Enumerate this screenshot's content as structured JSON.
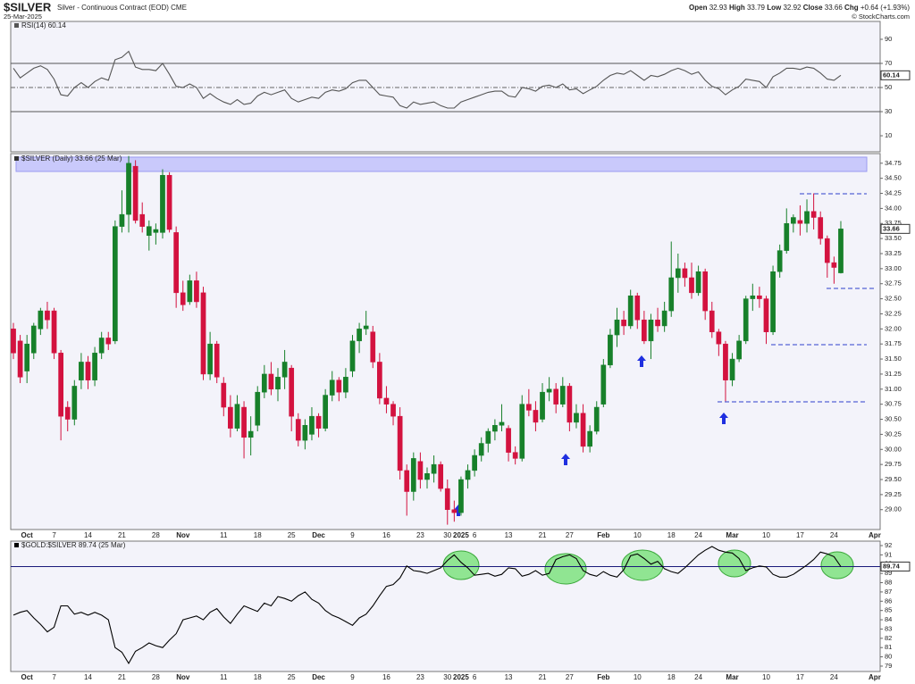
{
  "header": {
    "name": "Silver - Continuous Contract (EOD) CME",
    "date": "25-Mar-2025",
    "open_label": "Open",
    "high_label": "High",
    "low_label": "Low",
    "close_label": "Close",
    "chg_label": "Chg",
    "change": "+0.64 (+1.93%)",
    "credit": "© StockCharts.com"
  },
  "chart_data": [
    {
      "type": "line",
      "indicator": "RSI(14)",
      "color": "#555555",
      "bands": [
        30,
        70
      ],
      "midline": 50,
      "ylim": [
        -3.3,
        104.8
      ],
      "yticks": [
        10,
        30,
        50,
        70,
        90
      ],
      "values": [
        66,
        58,
        62,
        66,
        68,
        65,
        57,
        44,
        43,
        50,
        54,
        50,
        55,
        58,
        56,
        73,
        75,
        80,
        67,
        65,
        65,
        64,
        70,
        61,
        51,
        50,
        53,
        50,
        41,
        45,
        41,
        38,
        36,
        40,
        36,
        37,
        43,
        46,
        44,
        46,
        48,
        41,
        38,
        40,
        42,
        41,
        46,
        48,
        47,
        49,
        54,
        56,
        56,
        50,
        44,
        43,
        42,
        35,
        33,
        38,
        36,
        37,
        38,
        35,
        33,
        33,
        38,
        40,
        42,
        44,
        46,
        47,
        47,
        43,
        42,
        50,
        49,
        47,
        51,
        52,
        50,
        53,
        48,
        49,
        45,
        48,
        51,
        56,
        60,
        62,
        61,
        64,
        60,
        56,
        60,
        59,
        61,
        64,
        66,
        64,
        61,
        63,
        56,
        51,
        49,
        44,
        48,
        51,
        57,
        56,
        55,
        50,
        59,
        62,
        66,
        66,
        65,
        67,
        66,
        62,
        57,
        56,
        60.14,
        null,
        null,
        null,
        null,
        null
      ]
    },
    {
      "type": "candlestick",
      "symbol": "$SILVER",
      "period": "(Daily)",
      "date_label": "(25 Mar)",
      "up_color": "#17802a",
      "down_color": "#d3123f",
      "ylim": [
        28.67,
        34.91
      ],
      "yticks": [
        {
          "value": 29,
          "label": "29.00"
        },
        {
          "value": 29.25,
          "label": "29.25"
        },
        {
          "value": 29.5,
          "label": "29.50"
        },
        {
          "value": 29.75,
          "label": "29.75"
        },
        {
          "value": 30,
          "label": "30.00"
        },
        {
          "value": 30.25,
          "label": "30.25"
        },
        {
          "value": 30.5,
          "label": "30.50"
        },
        {
          "value": 30.75,
          "label": "30.75"
        },
        {
          "value": 31,
          "label": "31.00"
        },
        {
          "value": 31.25,
          "label": "31.25"
        },
        {
          "value": 31.5,
          "label": "31.50"
        },
        {
          "value": 31.75,
          "label": "31.75"
        },
        {
          "value": 32,
          "label": "32.00"
        },
        {
          "value": 32.25,
          "label": "32.25"
        },
        {
          "value": 32.5,
          "label": "32.50"
        },
        {
          "value": 32.75,
          "label": "32.75"
        },
        {
          "value": 33,
          "label": "33.00"
        },
        {
          "value": 33.25,
          "label": "33.25"
        },
        {
          "value": 33.5,
          "label": "33.50"
        },
        {
          "value": 33.75,
          "label": "33.75"
        },
        {
          "value": 34,
          "label": "34.00"
        },
        {
          "value": 34.25,
          "label": "34.25"
        },
        {
          "value": 34.5,
          "label": "34.50"
        },
        {
          "value": 34.75,
          "label": "34.75"
        }
      ],
      "categories": [
        null,
        null,
        "Oct",
        null,
        null,
        null,
        "7",
        null,
        null,
        null,
        null,
        "14",
        null,
        null,
        null,
        null,
        "21",
        null,
        null,
        null,
        null,
        "28",
        null,
        null,
        null,
        "Nov",
        null,
        null,
        null,
        null,
        null,
        "11",
        null,
        null,
        null,
        null,
        "18",
        null,
        null,
        null,
        null,
        "25",
        null,
        null,
        null,
        "Dec",
        null,
        null,
        null,
        null,
        "9",
        null,
        null,
        null,
        null,
        "16",
        null,
        null,
        null,
        null,
        "23",
        null,
        null,
        null,
        "30",
        null,
        "2025",
        null,
        "6",
        null,
        null,
        null,
        null,
        "13",
        null,
        null,
        null,
        null,
        "21",
        null,
        null,
        null,
        "27",
        null,
        null,
        null,
        null,
        "Feb",
        null,
        null,
        null,
        null,
        "10",
        null,
        null,
        null,
        null,
        "18",
        null,
        null,
        null,
        "24",
        null,
        null,
        null,
        null,
        "Mar",
        null,
        null,
        null,
        null,
        "10",
        null,
        null,
        null,
        null,
        "17",
        null,
        null,
        null,
        null,
        "24",
        null,
        null,
        null,
        null,
        null,
        "Apr"
      ],
      "open": [
        32.0,
        31.8,
        31.3,
        31.6,
        32.0,
        32.3,
        32.3,
        31.6,
        30.7,
        30.5,
        31.15,
        31.45,
        31.15,
        31.6,
        31.85,
        31.8,
        33.7,
        33.9,
        34.7,
        33.9,
        33.55,
        33.6,
        33.6,
        34.55,
        33.6,
        32.6,
        32.45,
        32.8,
        32.6,
        31.25,
        31.75,
        31.1,
        30.7,
        30.35,
        30.7,
        30.2,
        30.4,
        30.95,
        31.25,
        31.0,
        31.2,
        31.35,
        30.5,
        30.15,
        30.25,
        30.55,
        30.35,
        30.9,
        31.15,
        30.95,
        31.3,
        31.8,
        32.0,
        31.95,
        31.45,
        30.85,
        30.75,
        30.55,
        29.65,
        29.3,
        29.8,
        29.5,
        29.6,
        29.75,
        29.35,
        29.0,
        28.95,
        29.5,
        29.65,
        29.9,
        30.1,
        30.3,
        30.4,
        30.35,
        29.95,
        29.85,
        30.75,
        30.65,
        30.5,
        30.95,
        31.0,
        30.75,
        31.05,
        30.45,
        30.6,
        30.05,
        30.3,
        30.75,
        31.4,
        31.9,
        32.15,
        32.05,
        32.55,
        32.15,
        31.8,
        32.15,
        32.05,
        32.3,
        32.85,
        33.0,
        32.85,
        32.6,
        32.95,
        32.3,
        31.95,
        31.75,
        31.15,
        31.5,
        31.8,
        32.5,
        32.55,
        32.5,
        31.95,
        32.95,
        33.3,
        33.75,
        33.8,
        33.75,
        33.95,
        33.85,
        33.5,
        33.1,
        32.93,
        null,
        null,
        null,
        null,
        null
      ],
      "high": [
        32.1,
        31.9,
        31.9,
        32.1,
        32.35,
        32.45,
        32.35,
        31.65,
        30.8,
        31.15,
        31.6,
        31.55,
        31.7,
        31.95,
        31.95,
        33.8,
        34.3,
        34.87,
        34.8,
        34.1,
        33.8,
        33.75,
        34.65,
        34.6,
        33.7,
        32.8,
        32.9,
        32.95,
        32.7,
        31.95,
        31.8,
        31.2,
        30.9,
        30.9,
        30.8,
        30.55,
        31.05,
        31.4,
        31.45,
        31.35,
        31.65,
        31.4,
        30.6,
        30.5,
        30.7,
        30.6,
        31.0,
        31.3,
        31.2,
        31.35,
        31.9,
        32.1,
        32.3,
        32.05,
        31.6,
        31.05,
        30.8,
        30.7,
        29.75,
        29.95,
        29.95,
        29.7,
        29.9,
        29.8,
        29.5,
        29.15,
        29.55,
        29.75,
        30.0,
        30.2,
        30.35,
        30.5,
        30.75,
        30.4,
        30.05,
        30.9,
        31.0,
        30.8,
        31.1,
        31.2,
        31.1,
        31.2,
        31.1,
        30.75,
        30.75,
        30.4,
        30.8,
        31.5,
        32.0,
        32.35,
        32.3,
        32.65,
        32.6,
        32.3,
        32.25,
        32.35,
        32.45,
        33.45,
        33.25,
        33.1,
        33.1,
        33.05,
        33.0,
        32.45,
        32.0,
        31.8,
        31.6,
        31.9,
        32.55,
        32.75,
        32.7,
        32.55,
        33.05,
        33.4,
        34.0,
        33.9,
        34.05,
        34.15,
        34.25,
        33.95,
        33.55,
        33.2,
        33.79,
        null,
        null,
        null,
        null,
        null
      ],
      "low": [
        31.5,
        31.1,
        31.1,
        31.5,
        31.9,
        32.0,
        31.5,
        30.15,
        30.3,
        30.4,
        31.0,
        31.0,
        31.05,
        31.5,
        31.65,
        31.75,
        33.6,
        33.6,
        33.75,
        33.6,
        33.3,
        33.4,
        33.5,
        33.6,
        32.35,
        32.3,
        32.4,
        32.35,
        31.15,
        31.15,
        31.1,
        30.55,
        30.2,
        30.3,
        29.85,
        29.9,
        30.3,
        30.85,
        30.9,
        30.8,
        31.0,
        30.3,
        30.05,
        30.0,
        30.15,
        30.2,
        30.3,
        30.8,
        30.8,
        30.85,
        31.2,
        31.6,
        31.9,
        31.35,
        30.75,
        30.6,
        30.4,
        29.5,
        28.9,
        29.15,
        29.35,
        29.35,
        29.45,
        29.3,
        28.75,
        28.8,
        28.9,
        29.35,
        29.55,
        29.8,
        29.95,
        30.15,
        30.3,
        29.8,
        29.75,
        29.8,
        30.55,
        30.3,
        30.45,
        30.8,
        30.6,
        30.7,
        30.3,
        30.35,
        29.95,
        29.95,
        30.25,
        30.7,
        31.35,
        31.7,
        31.9,
        32.0,
        32.0,
        31.75,
        31.5,
        31.95,
        31.95,
        32.2,
        32.6,
        32.7,
        32.5,
        32.55,
        32.15,
        31.85,
        31.55,
        30.8,
        31.05,
        31.45,
        31.75,
        32.3,
        32.35,
        31.75,
        31.9,
        32.85,
        33.25,
        33.6,
        33.55,
        33.6,
        33.65,
        33.4,
        32.85,
        32.75,
        32.92,
        null,
        null,
        null,
        null,
        null
      ],
      "close": [
        31.6,
        31.2,
        31.75,
        32.05,
        32.3,
        32.15,
        31.6,
        30.55,
        30.5,
        31.05,
        31.45,
        31.15,
        31.6,
        31.85,
        31.75,
        33.7,
        33.9,
        34.75,
        33.8,
        33.7,
        33.7,
        33.65,
        34.55,
        33.65,
        32.6,
        32.4,
        32.8,
        32.45,
        31.25,
        31.75,
        31.2,
        30.7,
        30.35,
        30.75,
        30.2,
        30.3,
        30.95,
        31.25,
        31.0,
        31.2,
        31.45,
        30.55,
        30.15,
        30.4,
        30.55,
        30.35,
        30.9,
        31.15,
        30.95,
        31.2,
        31.8,
        32.0,
        32.05,
        31.45,
        30.85,
        30.75,
        30.55,
        29.65,
        29.3,
        29.85,
        29.5,
        29.6,
        29.75,
        29.35,
        29.0,
        28.95,
        29.5,
        29.65,
        29.9,
        30.1,
        30.3,
        30.4,
        30.45,
        29.95,
        29.85,
        30.75,
        30.65,
        30.45,
        30.95,
        31.0,
        30.75,
        31.05,
        30.45,
        30.6,
        30.05,
        30.3,
        30.7,
        31.4,
        31.9,
        32.15,
        32.05,
        32.55,
        32.15,
        31.8,
        32.15,
        32.05,
        32.3,
        32.85,
        33.0,
        32.85,
        32.6,
        32.95,
        32.3,
        31.95,
        31.75,
        31.15,
        31.5,
        31.8,
        32.5,
        32.55,
        32.5,
        31.95,
        32.95,
        33.3,
        33.75,
        33.85,
        33.75,
        33.95,
        33.85,
        33.5,
        33.1,
        33.02,
        33.66,
        null,
        null,
        null,
        null,
        null
      ]
    },
    {
      "type": "line",
      "symbol": "$GOLD:$SILVER",
      "date_label": "(25 Mar)",
      "color": "#000000",
      "last_value_line": true,
      "ylim": [
        78.42,
        92.48
      ],
      "yticks": [
        79,
        80,
        81,
        82,
        83,
        84,
        85,
        86,
        87,
        88,
        89,
        90,
        91,
        92
      ],
      "values": [
        84.5,
        84.8,
        85.0,
        84.2,
        83.5,
        82.7,
        83.2,
        85.5,
        85.5,
        84.6,
        84.8,
        84.5,
        84.8,
        84.5,
        84.0,
        81.0,
        80.5,
        79.3,
        80.6,
        81.0,
        81.5,
        81.2,
        81.0,
        81.8,
        82.5,
        84.0,
        84.2,
        84.4,
        84.0,
        84.8,
        85.2,
        84.3,
        83.6,
        84.6,
        85.5,
        85.2,
        84.9,
        85.8,
        85.5,
        86.5,
        86.3,
        86.0,
        86.6,
        87.0,
        86.2,
        85.8,
        85.0,
        84.5,
        84.2,
        83.8,
        83.4,
        84.2,
        84.6,
        85.5,
        86.6,
        87.6,
        87.8,
        88.5,
        89.8,
        89.3,
        89.2,
        89.0,
        89.3,
        89.6,
        90.4,
        91.0,
        90.2,
        89.6,
        88.8,
        88.9,
        89.0,
        88.7,
        88.9,
        89.6,
        89.5,
        88.7,
        88.9,
        89.3,
        88.8,
        89.0,
        90.5,
        90.8,
        91.0,
        90.6,
        89.3,
        88.9,
        88.7,
        89.2,
        88.8,
        88.6,
        89.4,
        90.9,
        91.1,
        90.6,
        90.0,
        90.3,
        89.5,
        89.2,
        89.0,
        89.6,
        90.3,
        91.0,
        91.5,
        91.9,
        91.5,
        91.3,
        91.2,
        90.6,
        89.3,
        89.6,
        89.8,
        89.7,
        88.9,
        88.6,
        88.6,
        88.9,
        89.4,
        89.9,
        90.5,
        91.3,
        91.1,
        90.8,
        89.74,
        null,
        null,
        null,
        null,
        null
      ]
    }
  ]
}
